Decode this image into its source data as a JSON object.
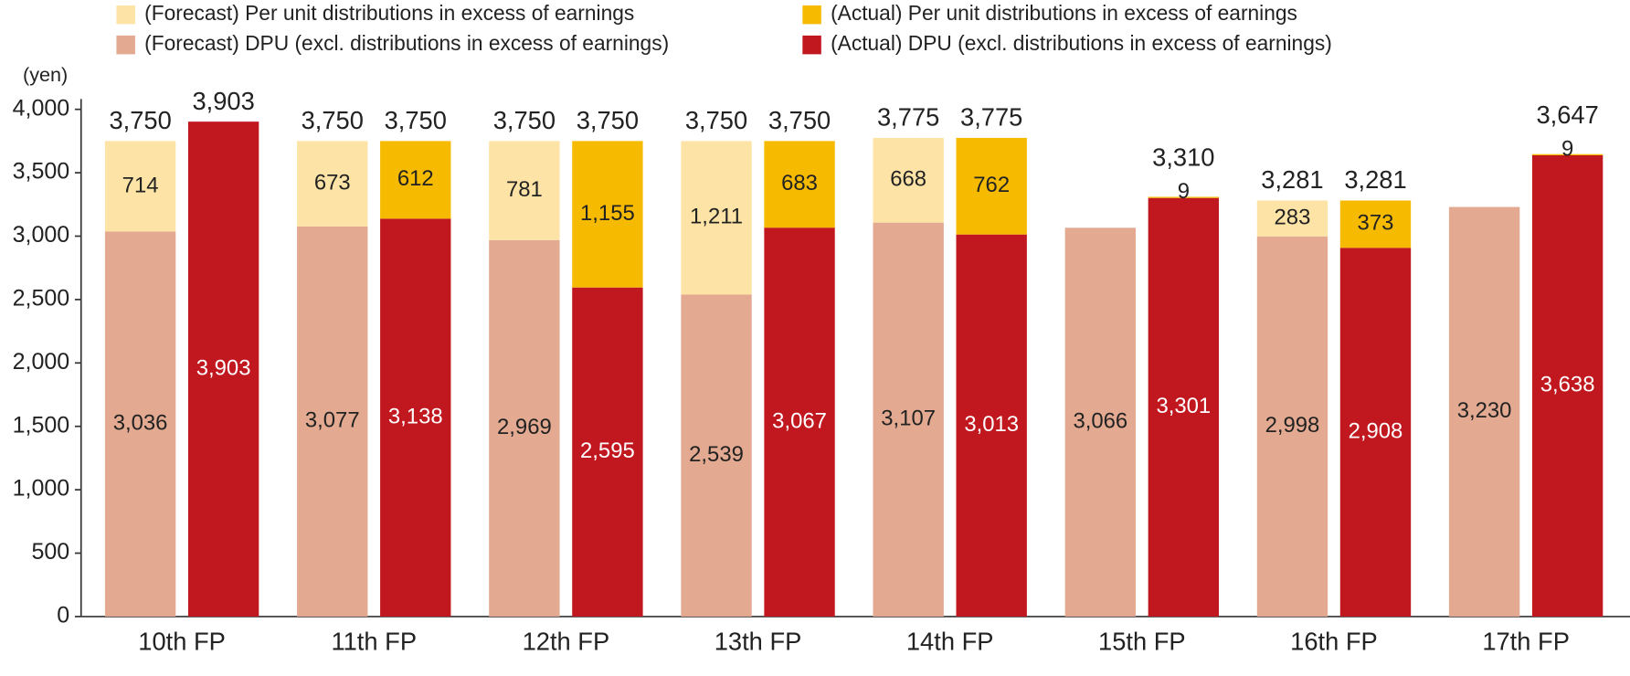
{
  "chart_data": {
    "type": "bar",
    "y_label": "(yen)",
    "categories": [
      "10th FP",
      "11th FP",
      "12th FP",
      "13th FP",
      "14th FP",
      "15th FP",
      "16th FP",
      "17th FP"
    ],
    "ylim": [
      0,
      4000
    ],
    "yticks": [
      0,
      500,
      {
        "value": 1000,
        "label": "1,000"
      },
      {
        "value": 1500,
        "label": "1,500"
      },
      {
        "value": 2000,
        "label": "2,000"
      },
      {
        "value": 2500,
        "label": "2,500"
      },
      {
        "value": 3000,
        "label": "3,000"
      },
      {
        "value": 3500,
        "label": "3,500"
      },
      {
        "value": 4000,
        "label": "4,000"
      }
    ],
    "stacks": [
      {
        "series": [
          {
            "name": "(Forecast) DPU (excl. distributions in excess of earnings)",
            "color": "#e3aa91",
            "label_color": "#222222",
            "values": [
              3036,
              3077,
              2969,
              2539,
              3107,
              3066,
              2998,
              3230
            ],
            "value_labels": [
              "3,036",
              "3,077",
              "2,969",
              "2,539",
              "3,107",
              "3,066",
              "2,998",
              "3,230"
            ]
          },
          {
            "name": "(Forecast) Per unit distributions in excess of earnings",
            "color": "#fde4a6",
            "label_color": "#222222",
            "values": [
              714,
              673,
              781,
              1211,
              668,
              null,
              283,
              null
            ],
            "value_labels": [
              "714",
              "673",
              "781",
              "1,211",
              "668",
              null,
              "283",
              null
            ]
          }
        ],
        "totals": [
          3750,
          3750,
          3750,
          3750,
          3775,
          null,
          3281,
          null
        ],
        "total_labels": [
          "3,750",
          "3,750",
          "3,750",
          "3,750",
          "3,775",
          null,
          "3,281",
          null
        ]
      },
      {
        "series": [
          {
            "name": "(Actual) DPU (excl. distributions in excess of earnings)",
            "color": "#c1181f",
            "label_color": "#ffffff",
            "values": [
              3903,
              3138,
              2595,
              3067,
              3013,
              3301,
              2908,
              3638
            ],
            "value_labels": [
              "3,903",
              "3,138",
              "2,595",
              "3,067",
              "3,013",
              "3,301",
              "2,908",
              "3,638"
            ]
          },
          {
            "name": "(Actual) Per unit distributions in excess of earnings",
            "color": "#f6bb00",
            "label_color": "#222222",
            "values": [
              null,
              612,
              1155,
              683,
              762,
              9,
              373,
              9
            ],
            "value_labels": [
              null,
              "612",
              "1,155",
              "683",
              "762",
              "9",
              "373",
              "9"
            ]
          }
        ],
        "totals": [
          3903,
          3750,
          3750,
          3750,
          3775,
          3310,
          3281,
          3647
        ],
        "total_labels": [
          "3,903",
          "3,750",
          "3,750",
          "3,750",
          "3,775",
          "3,310",
          "3,281",
          "3,647"
        ]
      }
    ]
  }
}
